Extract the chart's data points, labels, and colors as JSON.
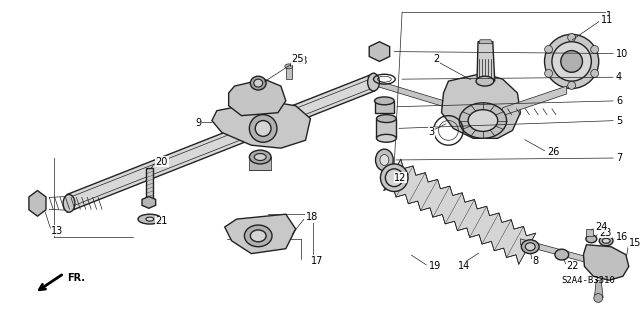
{
  "bg_color": "#ffffff",
  "line_color": "#222222",
  "fill_light": "#e8e8e8",
  "fill_mid": "#cccccc",
  "fill_dark": "#aaaaaa",
  "watermark": "S2A4-B3310",
  "direction_label": "FR.",
  "fig_width": 6.4,
  "fig_height": 3.18,
  "dpi": 100,
  "font_size": 7.0,
  "label_font_size": 7.5
}
